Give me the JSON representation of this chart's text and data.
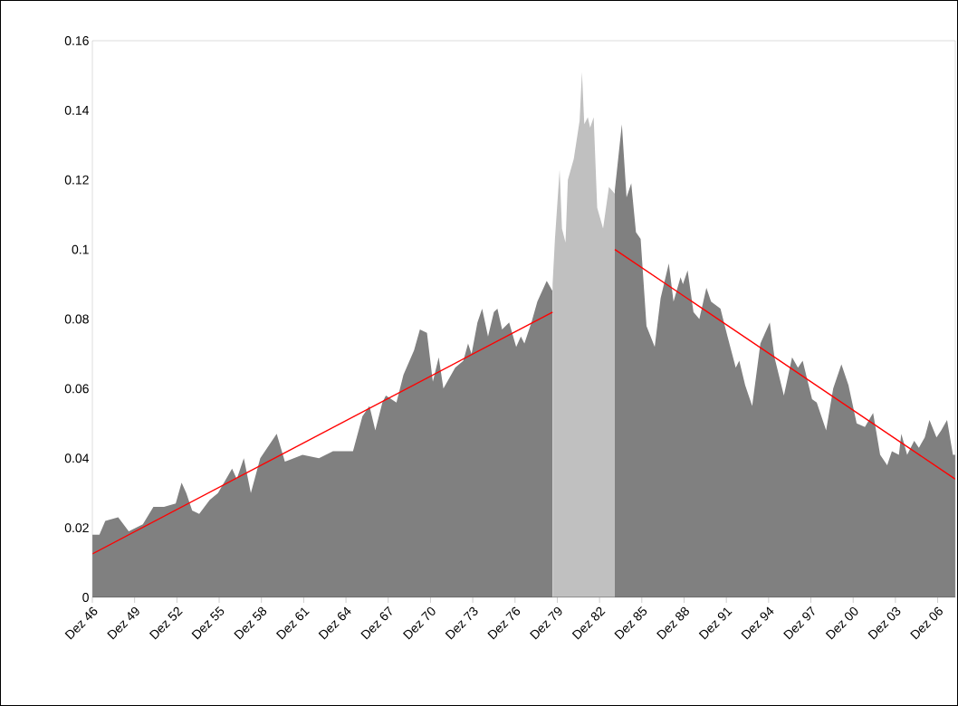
{
  "chart_data": {
    "type": "area",
    "xlim": [
      "1946-12",
      "2008-03"
    ],
    "ylim": [
      0,
      0.16
    ],
    "xticks": [
      {
        "value": "1946-12",
        "label": "Dez 46"
      },
      {
        "value": "1949-12",
        "label": "Dez 49"
      },
      {
        "value": "1952-12",
        "label": "Dez 52"
      },
      {
        "value": "1955-12",
        "label": "Dez 55"
      },
      {
        "value": "1958-12",
        "label": "Dez 58"
      },
      {
        "value": "1961-12",
        "label": "Dez 61"
      },
      {
        "value": "1964-12",
        "label": "Dez 64"
      },
      {
        "value": "1967-12",
        "label": "Dez 67"
      },
      {
        "value": "1970-12",
        "label": "Dez 70"
      },
      {
        "value": "1973-12",
        "label": "Dez 73"
      },
      {
        "value": "1976-12",
        "label": "Dez 76"
      },
      {
        "value": "1979-12",
        "label": "Dez 79"
      },
      {
        "value": "1982-12",
        "label": "Dez 82"
      },
      {
        "value": "1985-12",
        "label": "Dez 85"
      },
      {
        "value": "1988-12",
        "label": "Dez 88"
      },
      {
        "value": "1991-12",
        "label": "Dez 91"
      },
      {
        "value": "1994-12",
        "label": "Dez 94"
      },
      {
        "value": "1997-12",
        "label": "Dez 97"
      },
      {
        "value": "2000-12",
        "label": "Dez 00"
      },
      {
        "value": "2003-12",
        "label": "Dez 03"
      },
      {
        "value": "2006-12",
        "label": "Dez 06"
      }
    ],
    "yticks": [
      0,
      0.02,
      0.04,
      0.06,
      0.08,
      0.1,
      0.12,
      0.14,
      0.16
    ],
    "series": [
      {
        "color": "#808080",
        "x": [
          "1946-12",
          "1947-06",
          "1947-11",
          "1948-10",
          "1949-07",
          "1950-07",
          "1951-04",
          "1952-01",
          "1952-11",
          "1953-04",
          "1953-08",
          "1954-01",
          "1954-07",
          "1955-04",
          "1955-11",
          "1956-11",
          "1957-03",
          "1957-09",
          "1958-03",
          "1958-11",
          "1960-01",
          "1960-08",
          "1961-11",
          "1963-01",
          "1964-01",
          "1965-06",
          "1966-02",
          "1966-08",
          "1967-01",
          "1967-07",
          "1967-10",
          "1968-07",
          "1969-01",
          "1969-10",
          "1970-03",
          "1970-09",
          "1971-02",
          "1971-07",
          "1971-11",
          "1972-04",
          "1972-09",
          "1973-04",
          "1973-08",
          "1973-11",
          "1974-04",
          "1974-08",
          "1975-01",
          "1975-06",
          "1975-09",
          "1976-01",
          "1976-07",
          "1977-01",
          "1977-05",
          "1977-08",
          "1978-02",
          "1978-07",
          "1979-03",
          "1979-08"
        ],
        "values": [
          0.018,
          0.018,
          0.022,
          0.023,
          0.019,
          0.021,
          0.026,
          0.026,
          0.027,
          0.033,
          0.03,
          0.025,
          0.024,
          0.028,
          0.03,
          0.037,
          0.034,
          0.04,
          0.03,
          0.04,
          0.047,
          0.039,
          0.041,
          0.04,
          0.042,
          0.042,
          0.052,
          0.055,
          0.048,
          0.056,
          0.058,
          0.056,
          0.064,
          0.071,
          0.077,
          0.076,
          0.062,
          0.069,
          0.06,
          0.063,
          0.066,
          0.068,
          0.073,
          0.07,
          0.079,
          0.083,
          0.075,
          0.082,
          0.083,
          0.077,
          0.079,
          0.072,
          0.075,
          0.073,
          0.079,
          0.085,
          0.091,
          0.088
        ]
      },
      {
        "color": "#c0c0c0",
        "x": [
          "1979-08",
          "1979-10",
          "1980-02",
          "1980-04",
          "1980-07",
          "1980-09",
          "1981-02",
          "1981-07",
          "1981-09",
          "1981-11",
          "1982-02",
          "1982-04",
          "1982-07",
          "1982-10",
          "1983-03",
          "1983-08",
          "1984-01"
        ],
        "values": [
          0.09,
          0.103,
          0.123,
          0.106,
          0.102,
          0.12,
          0.126,
          0.137,
          0.151,
          0.136,
          0.138,
          0.135,
          0.138,
          0.112,
          0.106,
          0.118,
          0.116
        ]
      },
      {
        "color": "#808080",
        "x": [
          "1984-01",
          "1984-07",
          "1984-11",
          "1985-03",
          "1985-07",
          "1985-11",
          "1986-04",
          "1986-11",
          "1987-04",
          "1987-11",
          "1988-03",
          "1988-09",
          "1988-11",
          "1989-03",
          "1989-08",
          "1990-01",
          "1990-07",
          "1990-11",
          "1991-07",
          "1992-01",
          "1992-08",
          "1992-11",
          "1993-04",
          "1993-10",
          "1994-05",
          "1995-01",
          "1995-05",
          "1996-01",
          "1996-08",
          "1997-01",
          "1997-05",
          "1998-01",
          "1998-05",
          "1999-01",
          "1999-07",
          "2000-02",
          "2000-08",
          "2001-03",
          "2001-10",
          "2002-05",
          "2002-11",
          "2003-05",
          "2003-09",
          "2004-03",
          "2004-05",
          "2004-10",
          "2005-04",
          "2005-08",
          "2006-01",
          "2006-05",
          "2006-11",
          "2007-03",
          "2007-08",
          "2008-01",
          "2008-03"
        ],
        "values": [
          0.117,
          0.136,
          0.115,
          0.119,
          0.105,
          0.103,
          0.078,
          0.072,
          0.086,
          0.096,
          0.085,
          0.092,
          0.09,
          0.094,
          0.082,
          0.08,
          0.089,
          0.085,
          0.083,
          0.075,
          0.066,
          0.068,
          0.061,
          0.055,
          0.073,
          0.079,
          0.069,
          0.058,
          0.069,
          0.066,
          0.068,
          0.057,
          0.056,
          0.048,
          0.06,
          0.067,
          0.061,
          0.05,
          0.049,
          0.053,
          0.041,
          0.038,
          0.042,
          0.041,
          0.047,
          0.041,
          0.045,
          0.043,
          0.046,
          0.051,
          0.046,
          0.048,
          0.051,
          0.041,
          0.041
        ]
      },
      {
        "type": "line",
        "color": "#ff0000",
        "x": [
          "1946-12",
          "1979-08"
        ],
        "values": [
          0.0125,
          0.082
        ]
      },
      {
        "type": "line",
        "color": "#ff0000",
        "x": [
          "1984-01",
          "2008-03"
        ],
        "values": [
          0.1,
          0.034
        ]
      }
    ]
  }
}
